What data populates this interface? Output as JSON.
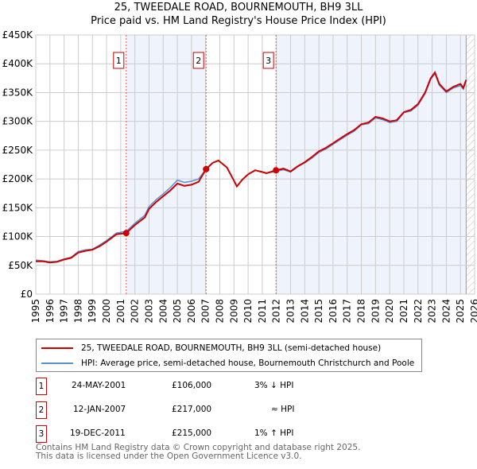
{
  "chart_data": {
    "type": "line",
    "title": "25, TWEEDALE ROAD, BOURNEMOUTH, BH9 3LL",
    "subtitle": "Price paid vs. HM Land Registry's House Price Index (HPI)",
    "xlim": [
      1995,
      2026
    ],
    "ylim": [
      0,
      450000
    ],
    "x_ticks": [
      "1995",
      "1996",
      "1997",
      "1998",
      "1999",
      "2000",
      "2001",
      "2002",
      "2003",
      "2004",
      "2005",
      "2006",
      "2007",
      "2008",
      "2009",
      "2010",
      "2011",
      "2012",
      "2013",
      "2014",
      "2015",
      "2016",
      "2017",
      "2018",
      "2019",
      "2020",
      "2021",
      "2022",
      "2023",
      "2024",
      "2025",
      "2026"
    ],
    "y_ticks": [
      {
        "v": 0,
        "label": "£0"
      },
      {
        "v": 50000,
        "label": "£50K"
      },
      {
        "v": 100000,
        "label": "£100K"
      },
      {
        "v": 150000,
        "label": "£150K"
      },
      {
        "v": 200000,
        "label": "£200K"
      },
      {
        "v": 250000,
        "label": "£250K"
      },
      {
        "v": 300000,
        "label": "£300K"
      },
      {
        "v": 350000,
        "label": "£350K"
      },
      {
        "v": 400000,
        "label": "£400K"
      },
      {
        "v": 450000,
        "label": "£450K"
      }
    ],
    "grid": true,
    "shaded_ranges": [
      [
        2001.39,
        2007.03
      ],
      [
        2011.97,
        2025.4
      ]
    ],
    "hatched_from": 2025.4,
    "series": [
      {
        "name": "25, TWEEDALE ROAD, BOURNEMOUTH, BH9 3LL (semi-detached house)",
        "color": "#cc0000",
        "x": [
          1995,
          1995.5,
          1996,
          1996.5,
          1997,
          1997.5,
          1998,
          1998.5,
          1999,
          1999.5,
          2000,
          2000.7,
          2001.39,
          2002,
          2002.7,
          2003,
          2003.5,
          2004,
          2004.5,
          2005,
          2005.5,
          2006,
          2006.5,
          2007.03,
          2007.5,
          2007.9,
          2008.5,
          2009,
          2009.2,
          2009.6,
          2010,
          2010.5,
          2011,
          2011.3,
          2011.97,
          2012.5,
          2013,
          2013.5,
          2014,
          2014.5,
          2015,
          2015.5,
          2016,
          2016.5,
          2017,
          2017.5,
          2018,
          2018.5,
          2019,
          2019.5,
          2020,
          2020.5,
          2021,
          2021.5,
          2022,
          2022.5,
          2022.9,
          2023.2,
          2023.5,
          2024,
          2024.5,
          2025,
          2025.2,
          2025.4
        ],
        "y": [
          57000,
          57000,
          55000,
          56000,
          60000,
          63000,
          72000,
          75000,
          77000,
          83000,
          91000,
          104000,
          106000,
          120000,
          133000,
          148000,
          160000,
          170000,
          180000,
          192000,
          188000,
          190000,
          195000,
          217000,
          228000,
          232000,
          220000,
          197000,
          187000,
          199000,
          208000,
          215000,
          212000,
          210000,
          215000,
          218000,
          213000,
          222000,
          229000,
          238000,
          248000,
          254000,
          262000,
          270000,
          278000,
          285000,
          295000,
          298000,
          308000,
          305000,
          300000,
          302000,
          316000,
          320000,
          330000,
          350000,
          375000,
          385000,
          365000,
          352000,
          360000,
          365000,
          358000,
          372000
        ]
      },
      {
        "name": "HPI: Average price, semi-detached house, Bournemouth Christchurch and Poole",
        "color": "#5b8fd4",
        "x": [
          1995,
          1995.5,
          1996,
          1996.5,
          1997,
          1997.5,
          1998,
          1998.5,
          1999,
          1999.5,
          2000,
          2000.7,
          2001.39,
          2002,
          2002.7,
          2003,
          2003.5,
          2004,
          2004.5,
          2005,
          2005.5,
          2006,
          2006.5,
          2007.03,
          2007.5,
          2007.9,
          2008.5,
          2009,
          2009.2,
          2009.6,
          2010,
          2010.5,
          2011,
          2011.3,
          2011.97,
          2012.5,
          2013,
          2013.5,
          2014,
          2014.5,
          2015,
          2015.5,
          2016,
          2016.5,
          2017,
          2017.5,
          2018,
          2018.5,
          2019,
          2019.5,
          2020,
          2020.5,
          2021,
          2021.5,
          2022,
          2022.5,
          2022.9,
          2023.2,
          2023.5,
          2024,
          2024.5,
          2025,
          2025.2,
          2025.4
        ],
        "y": [
          59000,
          58000,
          56000,
          57000,
          61000,
          64000,
          74000,
          77000,
          78000,
          85000,
          93000,
          106000,
          109000,
          123000,
          137000,
          152000,
          164000,
          174000,
          185000,
          198000,
          194000,
          196000,
          200000,
          217000,
          228000,
          232000,
          220000,
          197000,
          187000,
          199000,
          208000,
          215000,
          212000,
          210000,
          213000,
          216000,
          212000,
          221000,
          228000,
          236000,
          246000,
          252000,
          260000,
          268000,
          276000,
          283000,
          294000,
          296000,
          306000,
          303000,
          298000,
          300000,
          315000,
          318000,
          328000,
          348000,
          373000,
          383000,
          363000,
          350000,
          358000,
          362000,
          356000,
          370000
        ]
      }
    ],
    "sales": [
      {
        "label": "1",
        "x": 2001.39,
        "y": 106000
      },
      {
        "label": "2",
        "x": 2007.03,
        "y": 217000
      },
      {
        "label": "3",
        "x": 2011.97,
        "y": 215000
      }
    ]
  },
  "legend": {
    "red": "25, TWEEDALE ROAD, BOURNEMOUTH, BH9 3LL (semi-detached house)",
    "blue": "HPI: Average price, semi-detached house, Bournemouth Christchurch and Poole"
  },
  "sales_table": [
    {
      "num": "1",
      "date": "24-MAY-2001",
      "price": "£106,000",
      "hpi": "3% ↓ HPI"
    },
    {
      "num": "2",
      "date": "12-JAN-2007",
      "price": "£217,000",
      "hpi": "≈ HPI"
    },
    {
      "num": "3",
      "date": "19-DEC-2011",
      "price": "£215,000",
      "hpi": "1% ↑ HPI"
    }
  ],
  "footer": {
    "line1": "Contains HM Land Registry data © Crown copyright and database right 2025.",
    "line2": "This data is licensed under the Open Government Licence v3.0."
  }
}
